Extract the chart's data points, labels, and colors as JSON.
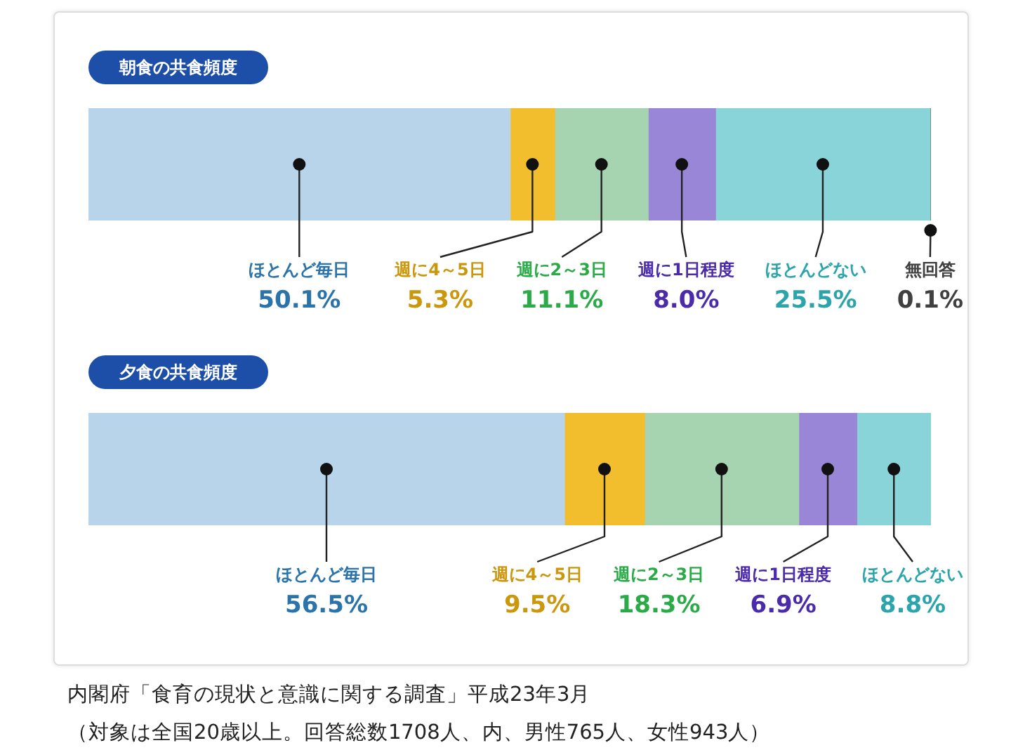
{
  "chart_data": [
    {
      "type": "bar",
      "title": "朝食の共食頻度",
      "orientation": "horizontal",
      "stacked": true,
      "categories": [
        null
      ],
      "tick_labels": false,
      "series": [
        {
          "name": "ほとんど毎日",
          "color": "#b8d4ea",
          "values": [
            50.1
          ],
          "value_labels": [
            "50.1%"
          ]
        },
        {
          "name": "週に4～5日",
          "color": "#f2be2e",
          "values": [
            5.3
          ],
          "value_labels": [
            "5.3%"
          ]
        },
        {
          "name": "週に2～3日",
          "color": "#a6d3b0",
          "values": [
            11.1
          ],
          "value_labels": [
            "11.1%"
          ]
        },
        {
          "name": "週に1日程度",
          "color": "#9a86d6",
          "values": [
            8.0
          ],
          "value_labels": [
            "8.0%"
          ]
        },
        {
          "name": "ほとんどない",
          "color": "#88d4d8",
          "values": [
            25.5
          ],
          "value_labels": [
            "25.5%"
          ]
        },
        {
          "name": "無回答",
          "color": "#555555",
          "values": [
            0.1
          ],
          "value_labels": [
            "0.1%"
          ]
        }
      ]
    },
    {
      "type": "bar",
      "title": "夕食の共食頻度",
      "orientation": "horizontal",
      "stacked": true,
      "categories": [
        null
      ],
      "tick_labels": false,
      "series": [
        {
          "name": "ほとんど毎日",
          "color": "#b8d4ea",
          "values": [
            56.5
          ],
          "value_labels": [
            "56.5%"
          ]
        },
        {
          "name": "週に4～5日",
          "color": "#f2be2e",
          "values": [
            9.5
          ],
          "value_labels": [
            "9.5%"
          ]
        },
        {
          "name": "週に2～3日",
          "color": "#a6d3b0",
          "values": [
            18.3
          ],
          "value_labels": [
            "18.3%"
          ]
        },
        {
          "name": "週に1日程度",
          "color": "#9a86d6",
          "values": [
            6.9
          ],
          "value_labels": [
            "6.9%"
          ]
        },
        {
          "name": "ほとんどない",
          "color": "#88d4d8",
          "values": [
            8.8
          ],
          "value_labels": [
            "8.8%"
          ]
        }
      ],
      "annotations": [
        "内閣府「食育の現状と意識に関する調査」平成23年3月",
        "（対象は全国20歳以上。回答総数1708人、内、男性765人、女性943人）"
      ]
    }
  ]
}
